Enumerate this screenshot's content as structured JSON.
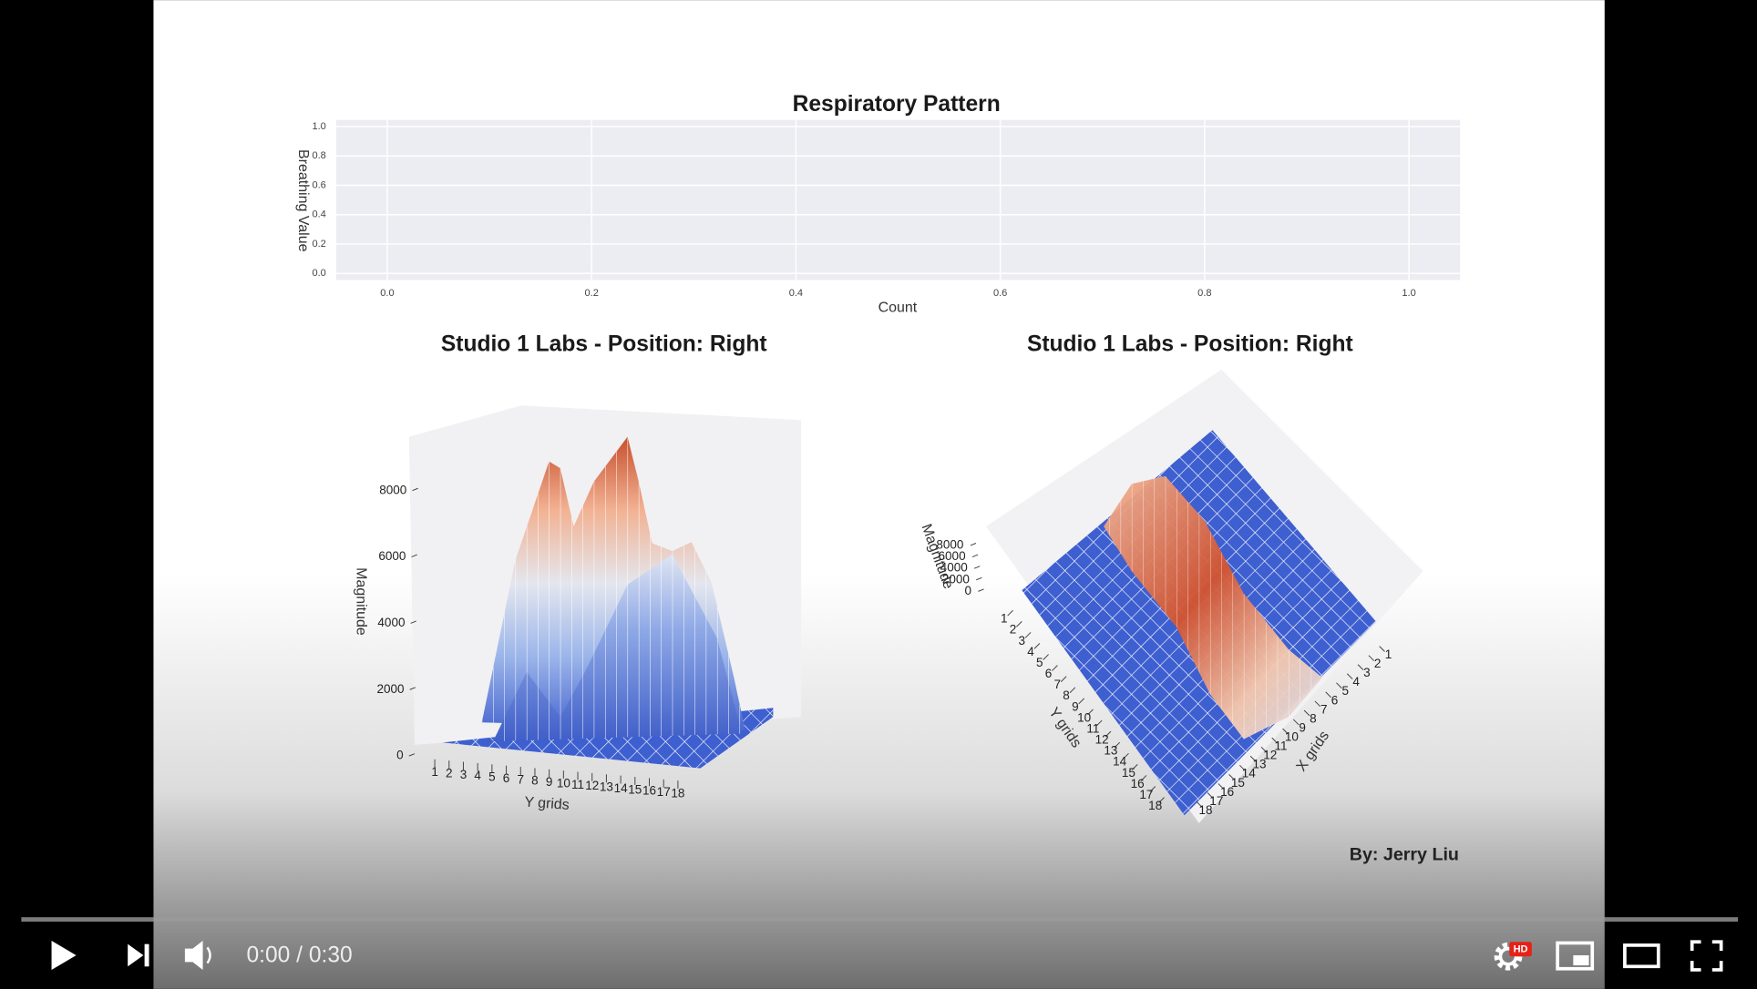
{
  "chart_data": [
    {
      "type": "line",
      "title": "Respiratory Pattern",
      "xlabel": "Count",
      "ylabel": "Breathing Value",
      "xlim": [
        -0.05,
        1.05
      ],
      "ylim": [
        -0.045,
        1.045
      ],
      "grid": true,
      "xticks": [
        {
          "value": 0,
          "label": "0.0"
        },
        {
          "value": 0.2,
          "label": "0.2"
        },
        {
          "value": 0.4,
          "label": "0.4"
        },
        {
          "value": 0.6,
          "label": "0.6"
        },
        {
          "value": 0.8,
          "label": "0.8"
        },
        {
          "value": 1,
          "label": "1.0"
        }
      ],
      "yticks": [
        {
          "value": 0,
          "label": "0.0"
        },
        {
          "value": 0.2,
          "label": "0.2"
        },
        {
          "value": 0.4,
          "label": "0.4"
        },
        {
          "value": 0.6,
          "label": "0.6"
        },
        {
          "value": 0.8,
          "label": "0.8"
        },
        {
          "value": 1,
          "label": "1.0"
        }
      ]
    },
    {
      "type": "surface",
      "title": "Studio 1 Labs - Position: Right",
      "zlabel": "Magnitude",
      "ylabel": "Y grids",
      "zticks": [
        0,
        2000,
        4000,
        6000,
        8000
      ],
      "yticks": [
        1,
        2,
        3,
        4,
        5,
        6,
        7,
        8,
        9,
        10,
        11,
        12,
        13,
        14,
        15,
        16,
        17,
        18
      ]
    },
    {
      "type": "surface",
      "title": "Studio 1 Labs - Position: Right",
      "zlabel": "Magnitude",
      "ylabel": "Y grids",
      "xlabel": "X grids",
      "zticks": [
        0,
        2000,
        4000,
        6000,
        8000
      ],
      "yticks": [
        1,
        2,
        3,
        4,
        5,
        6,
        7,
        8,
        9,
        10,
        11,
        12,
        13,
        14,
        15,
        16,
        17,
        18
      ],
      "xticks": [
        1,
        2,
        3,
        4,
        5,
        6,
        7,
        8,
        9,
        10,
        11,
        12,
        13,
        14,
        15,
        16,
        17,
        18
      ]
    }
  ],
  "credit": "By: Jerry Liu",
  "player": {
    "time_display": "0:00 / 0:30",
    "hd_badge": "HD"
  }
}
